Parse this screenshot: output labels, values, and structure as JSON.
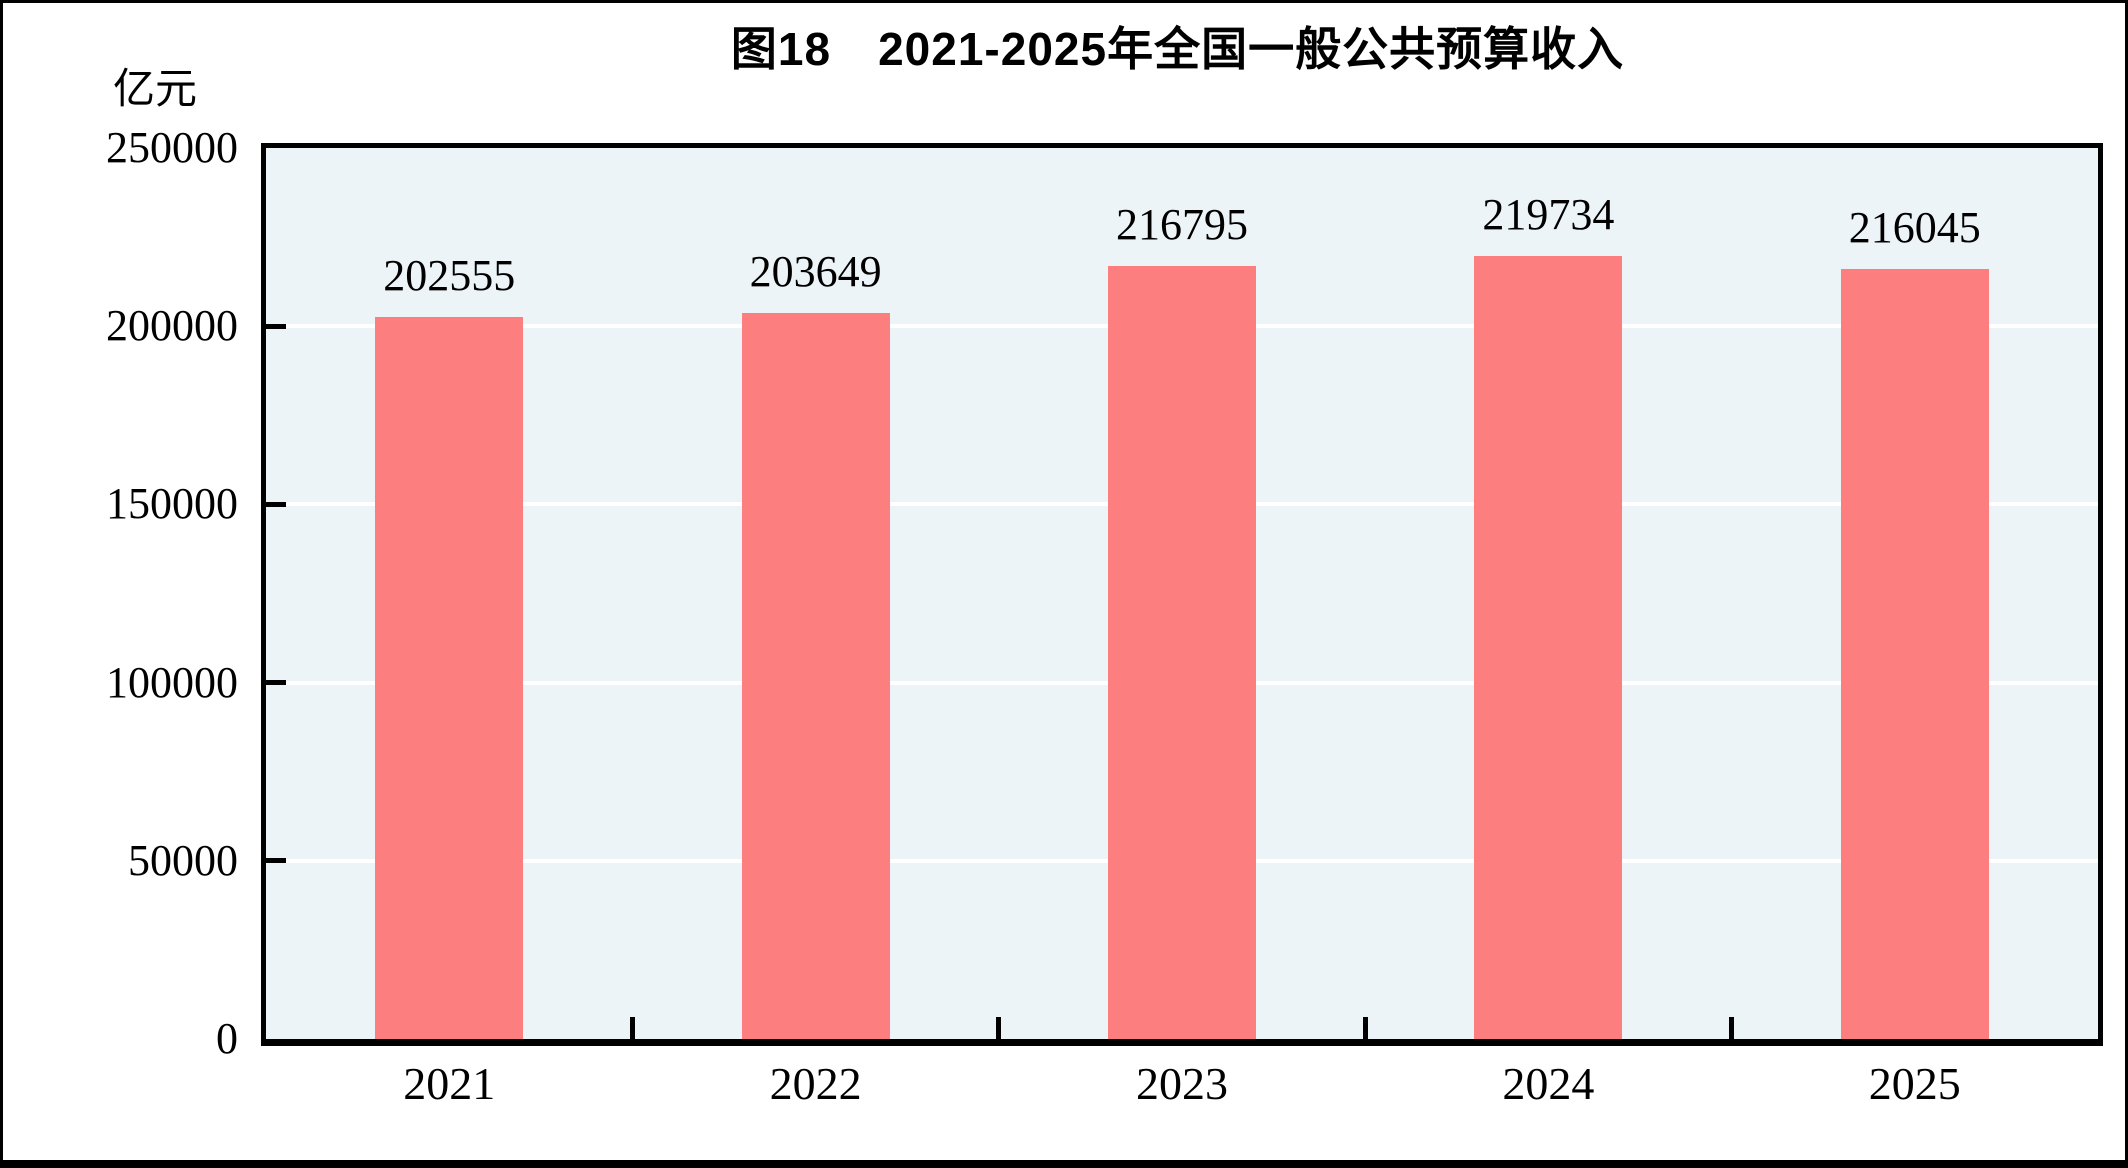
{
  "title": "图18　2021-2025年全国一般公共预算收入",
  "y_axis_unit": "亿元",
  "chart_data": {
    "type": "bar",
    "title": "图18　2021-2025年全国一般公共预算收入",
    "categories": [
      "2021",
      "2022",
      "2023",
      "2024",
      "2025"
    ],
    "values": [
      202555,
      203649,
      216795,
      219734,
      216045
    ],
    "data_labels": [
      "202555",
      "203649",
      "216795",
      "219734",
      "216045"
    ],
    "xlabel": "",
    "ylabel": "亿元",
    "ylim": [
      0,
      250000
    ],
    "yticks": [
      0,
      50000,
      100000,
      150000,
      200000,
      250000
    ],
    "ytick_labels": [
      "0",
      "50000",
      "100000",
      "150000",
      "200000",
      "250000"
    ],
    "grid": true,
    "legend": "none",
    "colors": {
      "bar": "#fc7e7e",
      "plot_background": "#edf4f7",
      "gridline": "#ffffff",
      "axis": "#000000",
      "text": "#000000",
      "page_background": "#ffffff"
    }
  }
}
